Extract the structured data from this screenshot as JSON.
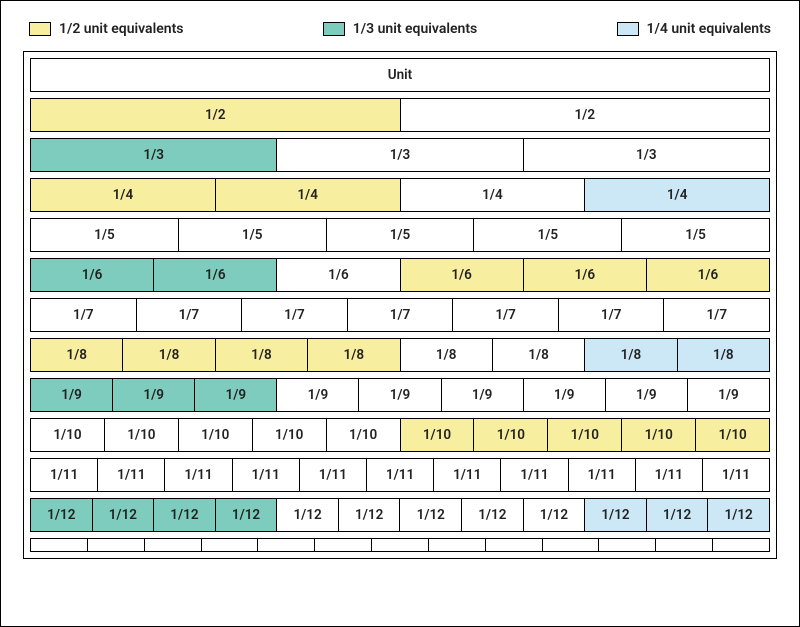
{
  "colors": {
    "half": "#f8ee9f",
    "third": "#7dccbd",
    "quarter": "#cce8f7",
    "none": "#ffffff",
    "border": "#000000"
  },
  "legend": [
    {
      "label": "1/2 unit equivalents",
      "colorKey": "half"
    },
    {
      "label": "1/3 unit equivalents",
      "colorKey": "third"
    },
    {
      "label": "1/4 unit equivalents",
      "colorKey": "quarter"
    }
  ],
  "unit_label": "Unit",
  "rows": [
    {
      "n": 2,
      "label": "1/2",
      "colors": [
        "half",
        "none"
      ]
    },
    {
      "n": 3,
      "label": "1/3",
      "colors": [
        "third",
        "none",
        "none"
      ]
    },
    {
      "n": 4,
      "label": "1/4",
      "colors": [
        "half",
        "half",
        "none",
        "quarter"
      ]
    },
    {
      "n": 5,
      "label": "1/5",
      "colors": [
        "none",
        "none",
        "none",
        "none",
        "none"
      ]
    },
    {
      "n": 6,
      "label": "1/6",
      "colors": [
        "third",
        "third",
        "none",
        "half",
        "half",
        "half"
      ]
    },
    {
      "n": 7,
      "label": "1/7",
      "colors": [
        "none",
        "none",
        "none",
        "none",
        "none",
        "none",
        "none"
      ]
    },
    {
      "n": 8,
      "label": "1/8",
      "colors": [
        "half",
        "half",
        "half",
        "half",
        "none",
        "none",
        "quarter",
        "quarter"
      ]
    },
    {
      "n": 9,
      "label": "1/9",
      "colors": [
        "third",
        "third",
        "third",
        "none",
        "none",
        "none",
        "none",
        "none",
        "none"
      ]
    },
    {
      "n": 10,
      "label": "1/10",
      "colors": [
        "none",
        "none",
        "none",
        "none",
        "none",
        "half",
        "half",
        "half",
        "half",
        "half"
      ]
    },
    {
      "n": 11,
      "label": "1/11",
      "colors": [
        "none",
        "none",
        "none",
        "none",
        "none",
        "none",
        "none",
        "none",
        "none",
        "none",
        "none"
      ]
    },
    {
      "n": 12,
      "label": "1/12",
      "colors": [
        "third",
        "third",
        "third",
        "third",
        "none",
        "none",
        "none",
        "none",
        "none",
        "quarter",
        "quarter",
        "quarter"
      ]
    }
  ],
  "bottom_ticks": 13,
  "font": {
    "cell_size_pt": 10,
    "legend_size_pt": 10.5,
    "weight": 600
  }
}
